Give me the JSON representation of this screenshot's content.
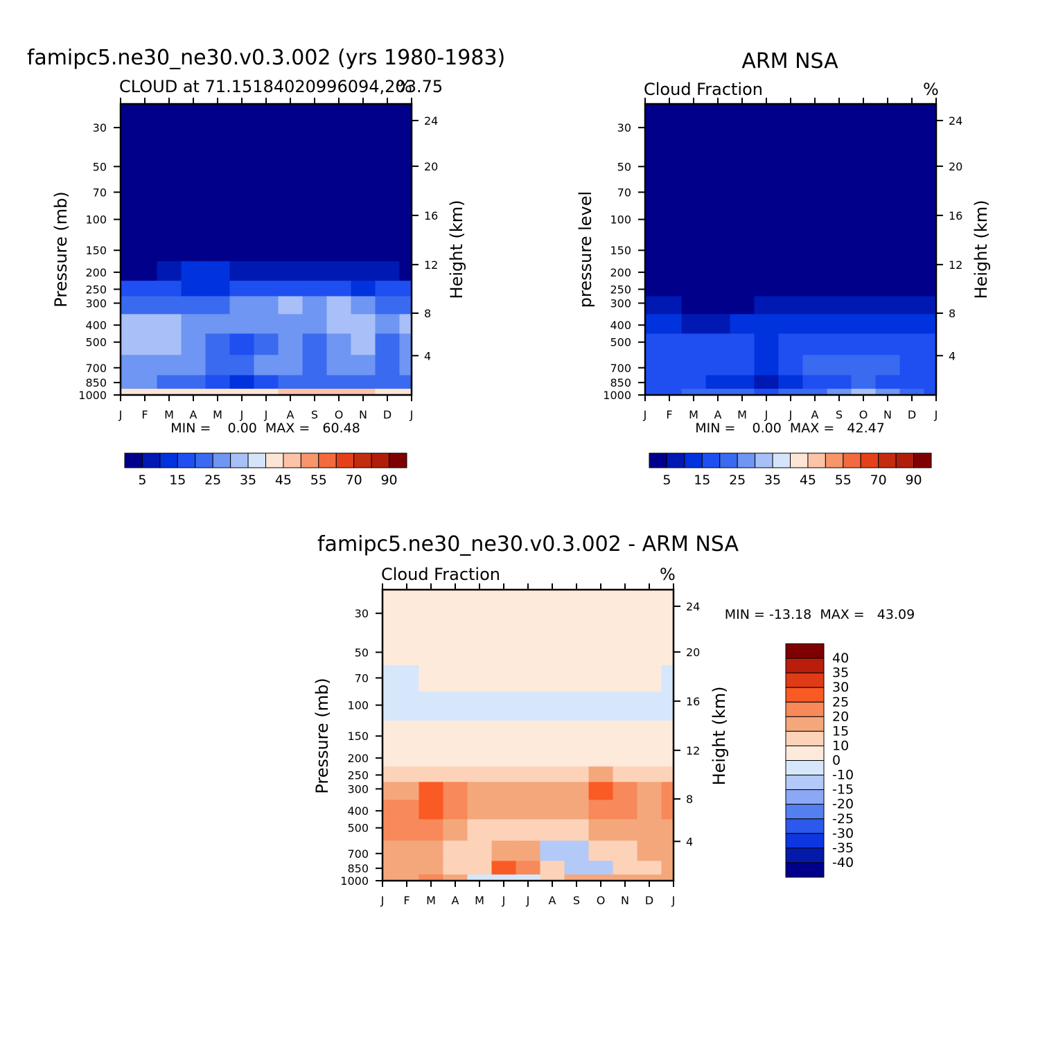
{
  "chart_data": [
    {
      "type": "heatmap",
      "panel": "model",
      "title": "famipc5.ne30_ne30.v0.3.002 (yrs 1980-1983)",
      "subtitle_left": "CLOUD at 71.15184020996094,203.75",
      "subtitle_right": "%",
      "ylabel": "Pressure (mb)",
      "ylabel_right": "Height (km)",
      "months": [
        "J",
        "F",
        "M",
        "A",
        "M",
        "J",
        "J",
        "A",
        "S",
        "O",
        "N",
        "D",
        "J"
      ],
      "pressure_ticks": [
        "30",
        "50",
        "70",
        "100",
        "150",
        "200",
        "250",
        "300",
        "400",
        "500",
        "700",
        "850",
        "1000"
      ],
      "height_ticks": [
        "24",
        "20",
        "16",
        "12",
        "8",
        "4"
      ],
      "stats": "MIN =    0.00  MAX =   60.48",
      "levels": [
        1,
        2,
        3,
        4,
        5,
        6,
        7,
        8,
        9,
        10,
        11,
        12,
        13,
        14
      ],
      "rows_pressure": [
        30,
        50,
        70,
        100,
        150,
        200,
        250,
        300,
        400,
        500,
        700,
        850,
        1000
      ],
      "values": [
        [
          0,
          0,
          0,
          0,
          0,
          0,
          0,
          0,
          0,
          0,
          0,
          0,
          0
        ],
        [
          0,
          0,
          0,
          0,
          0,
          0,
          0,
          0,
          0,
          0,
          0,
          0,
          0
        ],
        [
          0,
          0,
          0,
          0,
          0,
          0,
          0,
          0,
          0,
          0,
          0,
          0,
          0
        ],
        [
          0,
          0,
          0,
          0,
          0,
          0,
          0,
          0,
          0,
          0,
          0,
          0,
          0
        ],
        [
          0,
          0,
          0,
          0,
          0,
          0,
          0,
          0,
          0,
          0,
          0,
          0,
          0
        ],
        [
          0,
          0,
          1,
          2,
          2,
          1,
          1,
          1,
          1,
          1,
          1,
          1,
          0
        ],
        [
          3,
          3,
          3,
          2,
          2,
          3,
          3,
          3,
          3,
          3,
          2,
          3,
          3
        ],
        [
          4,
          4,
          4,
          4,
          4,
          5,
          5,
          6,
          5,
          6,
          5,
          4,
          4
        ],
        [
          6,
          6,
          6,
          5,
          5,
          5,
          5,
          5,
          5,
          6,
          6,
          5,
          6
        ],
        [
          6,
          6,
          6,
          5,
          4,
          3,
          4,
          5,
          4,
          5,
          6,
          4,
          5
        ],
        [
          5,
          5,
          5,
          5,
          4,
          4,
          5,
          5,
          4,
          5,
          5,
          4,
          5
        ],
        [
          5,
          5,
          4,
          4,
          3,
          2,
          3,
          4,
          4,
          4,
          4,
          4,
          4
        ],
        [
          8,
          8,
          8,
          8,
          8,
          8,
          8,
          9,
          9,
          9,
          9,
          8,
          8
        ]
      ]
    },
    {
      "type": "heatmap",
      "panel": "obs",
      "title": "ARM NSA",
      "subtitle_left": "Cloud Fraction",
      "subtitle_right": "%",
      "ylabel": "pressure level",
      "ylabel_right": "Height (km)",
      "months": [
        "J",
        "F",
        "M",
        "A",
        "M",
        "J",
        "J",
        "A",
        "S",
        "O",
        "N",
        "D",
        "J"
      ],
      "pressure_ticks": [
        "30",
        "50",
        "70",
        "100",
        "150",
        "200",
        "250",
        "300",
        "400",
        "500",
        "700",
        "850",
        "1000"
      ],
      "height_ticks": [
        "24",
        "20",
        "16",
        "12",
        "8",
        "4"
      ],
      "stats": "MIN =    0.00  MAX =   42.47",
      "levels": [
        1,
        2,
        3,
        4,
        5,
        6,
        7,
        8,
        9,
        10,
        11,
        12,
        13,
        14
      ],
      "rows_pressure": [
        30,
        50,
        70,
        100,
        150,
        200,
        250,
        300,
        400,
        500,
        700,
        850,
        1000
      ],
      "values": [
        [
          0,
          0,
          0,
          0,
          0,
          0,
          0,
          0,
          0,
          0,
          0,
          0,
          0
        ],
        [
          0,
          0,
          0,
          0,
          0,
          0,
          0,
          0,
          0,
          0,
          0,
          0,
          0
        ],
        [
          0,
          0,
          0,
          0,
          0,
          0,
          0,
          0,
          0,
          0,
          0,
          0,
          0
        ],
        [
          0,
          0,
          0,
          0,
          0,
          0,
          0,
          0,
          0,
          0,
          0,
          0,
          0
        ],
        [
          0,
          0,
          0,
          0,
          0,
          0,
          0,
          0,
          0,
          0,
          0,
          0,
          0
        ],
        [
          0,
          0,
          0,
          0,
          0,
          0,
          0,
          0,
          0,
          0,
          0,
          0,
          0
        ],
        [
          0,
          0,
          0,
          0,
          0,
          0,
          0,
          0,
          0,
          0,
          0,
          0,
          0
        ],
        [
          1,
          1,
          0,
          0,
          0,
          1,
          1,
          1,
          1,
          1,
          1,
          1,
          1
        ],
        [
          2,
          2,
          1,
          1,
          2,
          2,
          2,
          2,
          2,
          2,
          2,
          2,
          2
        ],
        [
          3,
          3,
          3,
          3,
          3,
          2,
          3,
          3,
          3,
          3,
          3,
          3,
          3
        ],
        [
          3,
          3,
          3,
          3,
          3,
          2,
          3,
          4,
          4,
          4,
          4,
          3,
          3
        ],
        [
          3,
          3,
          3,
          2,
          2,
          1,
          2,
          3,
          3,
          4,
          3,
          3,
          3
        ],
        [
          3,
          3,
          4,
          4,
          4,
          3,
          4,
          4,
          5,
          6,
          5,
          4,
          3
        ]
      ]
    },
    {
      "type": "heatmap",
      "panel": "difference",
      "title": "famipc5.ne30_ne30.v0.3.002 - ARM NSA",
      "subtitle_left": "Cloud Fraction",
      "subtitle_right": "%",
      "ylabel": "Pressure (mb)",
      "ylabel_right": "Height (km)",
      "months": [
        "J",
        "F",
        "M",
        "A",
        "M",
        "J",
        "J",
        "A",
        "S",
        "O",
        "N",
        "D",
        "J"
      ],
      "pressure_ticks": [
        "30",
        "50",
        "70",
        "100",
        "150",
        "200",
        "250",
        "300",
        "400",
        "500",
        "700",
        "850",
        "1000"
      ],
      "height_ticks": [
        "24",
        "20",
        "16",
        "12",
        "8",
        "4"
      ],
      "stats": "MIN = -13.18  MAX =   43.09",
      "levels": [
        -40,
        -35,
        -30,
        -25,
        -20,
        -15,
        -10,
        0,
        10,
        15,
        20,
        25,
        30,
        35,
        40
      ],
      "rows_pressure": [
        30,
        50,
        70,
        100,
        150,
        200,
        250,
        300,
        400,
        500,
        700,
        850,
        1000
      ],
      "values": [
        [
          1,
          1,
          1,
          1,
          1,
          1,
          1,
          1,
          1,
          1,
          1,
          1,
          1
        ],
        [
          1,
          1,
          1,
          1,
          1,
          1,
          1,
          1,
          1,
          1,
          1,
          1,
          1
        ],
        [
          -1,
          -1,
          1,
          1,
          1,
          1,
          1,
          1,
          1,
          1,
          1,
          1,
          -1
        ],
        [
          -1,
          -1,
          -1,
          -1,
          -1,
          -1,
          -1,
          -1,
          -1,
          -1,
          -1,
          -1,
          -1
        ],
        [
          1,
          1,
          1,
          1,
          1,
          1,
          1,
          1,
          1,
          1,
          1,
          1,
          1
        ],
        [
          1,
          1,
          1,
          1,
          1,
          1,
          1,
          1,
          1,
          1,
          1,
          1,
          1
        ],
        [
          11,
          11,
          11,
          12,
          12,
          12,
          12,
          12,
          12,
          13,
          12,
          12,
          12
        ],
        [
          16,
          16,
          21,
          18,
          15,
          15,
          15,
          15,
          15,
          22,
          17,
          15,
          18
        ],
        [
          20,
          20,
          22,
          20,
          15,
          14,
          14,
          14,
          15,
          20,
          20,
          15,
          18
        ],
        [
          17,
          17,
          17,
          14,
          12,
          11,
          11,
          11,
          11,
          14,
          16,
          14,
          16
        ],
        [
          14,
          14,
          15,
          11,
          11,
          15,
          15,
          -2,
          -2,
          11,
          11,
          14,
          14
        ],
        [
          16,
          16,
          16,
          11,
          11,
          22,
          20,
          11,
          -2,
          -2,
          11,
          11,
          14
        ],
        [
          15,
          15,
          20,
          16,
          -1,
          -1,
          -1,
          11,
          16,
          16,
          16,
          16,
          16
        ]
      ]
    }
  ],
  "colorbars": {
    "top": {
      "labels": [
        "5",
        "15",
        "25",
        "35",
        "45",
        "55",
        "70",
        "90"
      ],
      "colors": [
        "#00008b",
        "#0019b3",
        "#0033dd",
        "#1f4ff0",
        "#3a6af0",
        "#6e96f2",
        "#a8c0f7",
        "#d4e4fb",
        "#fde5d6",
        "#fcc3a8",
        "#f7956b",
        "#f26a3f",
        "#e4411a",
        "#c32d0f",
        "#b01e0b",
        "#7f0000"
      ]
    },
    "bottom": {
      "labels": [
        "40",
        "35",
        "30",
        "25",
        "20",
        "15",
        "10",
        "0",
        "-10",
        "-15",
        "-20",
        "-25",
        "-30",
        "-35",
        "-40"
      ],
      "colors": [
        "#7f0000",
        "#b81e0b",
        "#df3b17",
        "#fa5a24",
        "#f7895a",
        "#f5a77c",
        "#fcd3b9",
        "#feeadb",
        "#d7e7fb",
        "#b3c9f8",
        "#8ba8f5",
        "#547ff0",
        "#2c58ec",
        "#0d36e0",
        "#031ba8",
        "#00008b"
      ]
    }
  }
}
